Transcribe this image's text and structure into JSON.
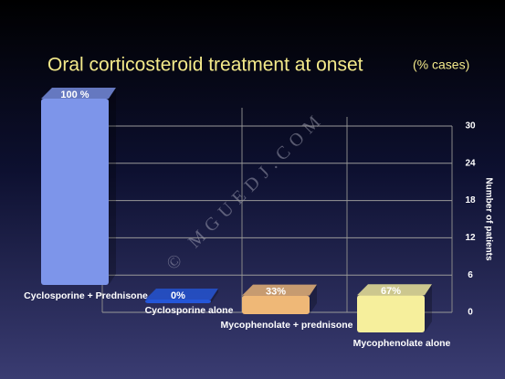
{
  "chart_data": {
    "type": "bar3d",
    "title": "Oral corticosteroid treatment at onset",
    "subtitle": "(% cases)",
    "y_axis_label": "Number of patients",
    "watermark": "© MGUEDJ.COM",
    "categories": [
      "Cyclosporine + Prednisone",
      "Cyclosporine alone",
      "Mycophenolate + prednisone",
      "Mycophenolate alone"
    ],
    "values": [
      30,
      0,
      3,
      6
    ],
    "value_labels": [
      "100 %",
      "0%",
      "33%",
      "67%"
    ],
    "colors": [
      "#7d95ea",
      "#2456d8",
      "#efb877",
      "#f6ef9c"
    ],
    "ylim": [
      0,
      30
    ],
    "yticks": [
      0,
      6,
      12,
      18,
      24,
      30
    ],
    "grid": true
  }
}
